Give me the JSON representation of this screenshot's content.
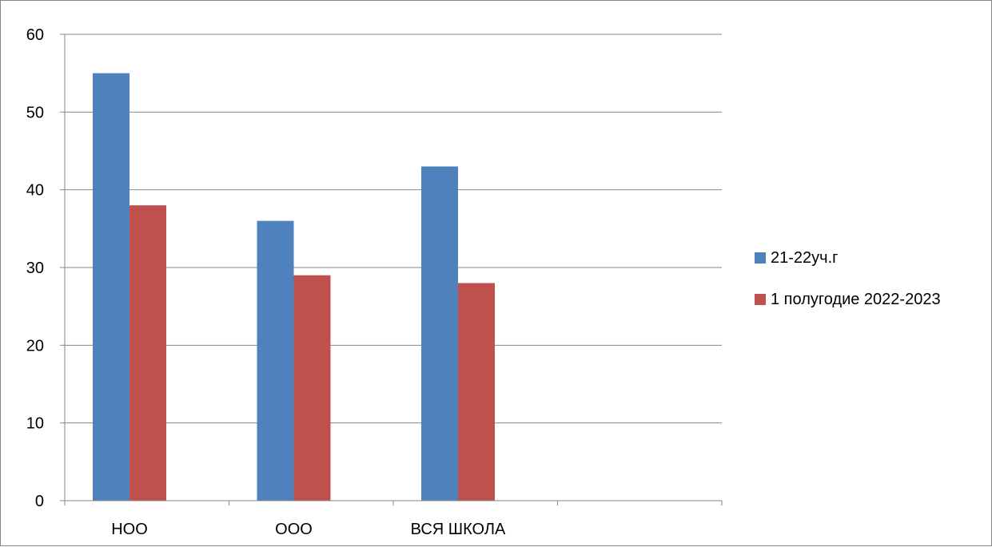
{
  "chart_data": {
    "type": "bar",
    "categories": [
      "НОО",
      "ООО",
      "ВСЯ ШКОЛА",
      ""
    ],
    "series": [
      {
        "name": "21-22уч.г",
        "color": "#4f81bd",
        "values": [
          55,
          36,
          43,
          null
        ]
      },
      {
        "name": "1 полугодие 2022-2023",
        "color": "#c0504d",
        "values": [
          38,
          29,
          28,
          null
        ]
      }
    ],
    "ylim": [
      0,
      60
    ],
    "yticks": [
      0,
      10,
      20,
      30,
      40,
      50,
      60
    ],
    "grid": true,
    "legend_position": "right"
  }
}
